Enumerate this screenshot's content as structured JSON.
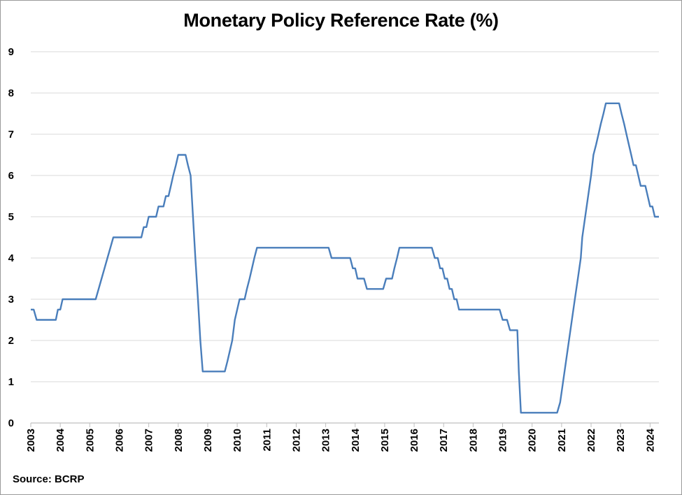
{
  "chart_data": {
    "type": "line",
    "title": "Monetary Policy Reference Rate (%)",
    "source": "Source: BCRP",
    "xlabel": "",
    "ylabel": "",
    "ylim": [
      0,
      9
    ],
    "y_ticks": [
      0,
      1,
      2,
      3,
      4,
      5,
      6,
      7,
      8,
      9
    ],
    "xlim": [
      2003,
      2024.3
    ],
    "x_ticks": [
      2003,
      2004,
      2005,
      2006,
      2007,
      2008,
      2009,
      2010,
      2011,
      2012,
      2013,
      2014,
      2015,
      2016,
      2017,
      2018,
      2019,
      2020,
      2021,
      2022,
      2023,
      2024
    ],
    "grid": "horizontal",
    "line_color": "#4a7ebb",
    "series": [
      {
        "points": [
          [
            2003.0,
            2.75
          ],
          [
            2003.1,
            2.75
          ],
          [
            2003.2,
            2.5
          ],
          [
            2003.85,
            2.5
          ],
          [
            2003.92,
            2.75
          ],
          [
            2004.0,
            2.75
          ],
          [
            2004.08,
            3.0
          ],
          [
            2005.2,
            3.0
          ],
          [
            2005.3,
            3.25
          ],
          [
            2005.4,
            3.5
          ],
          [
            2005.5,
            3.75
          ],
          [
            2005.6,
            4.0
          ],
          [
            2005.7,
            4.25
          ],
          [
            2005.8,
            4.5
          ],
          [
            2006.75,
            4.5
          ],
          [
            2006.83,
            4.75
          ],
          [
            2006.92,
            4.75
          ],
          [
            2007.0,
            5.0
          ],
          [
            2007.25,
            5.0
          ],
          [
            2007.33,
            5.25
          ],
          [
            2007.5,
            5.25
          ],
          [
            2007.58,
            5.5
          ],
          [
            2007.67,
            5.5
          ],
          [
            2007.75,
            5.75
          ],
          [
            2007.83,
            6.0
          ],
          [
            2007.92,
            6.25
          ],
          [
            2008.0,
            6.5
          ],
          [
            2008.25,
            6.5
          ],
          [
            2008.33,
            6.25
          ],
          [
            2008.42,
            6.0
          ],
          [
            2008.5,
            5.0
          ],
          [
            2008.58,
            4.0
          ],
          [
            2008.67,
            3.0
          ],
          [
            2008.75,
            2.0
          ],
          [
            2008.83,
            1.25
          ],
          [
            2009.58,
            1.25
          ],
          [
            2009.67,
            1.5
          ],
          [
            2009.75,
            1.75
          ],
          [
            2009.83,
            2.0
          ],
          [
            2009.92,
            2.5
          ],
          [
            2010.0,
            2.75
          ],
          [
            2010.08,
            3.0
          ],
          [
            2010.25,
            3.0
          ],
          [
            2010.33,
            3.25
          ],
          [
            2010.42,
            3.5
          ],
          [
            2010.5,
            3.75
          ],
          [
            2010.58,
            4.0
          ],
          [
            2010.67,
            4.25
          ],
          [
            2013.1,
            4.25
          ],
          [
            2013.2,
            4.0
          ],
          [
            2013.83,
            4.0
          ],
          [
            2013.92,
            3.75
          ],
          [
            2014.0,
            3.75
          ],
          [
            2014.08,
            3.5
          ],
          [
            2014.3,
            3.5
          ],
          [
            2014.4,
            3.25
          ],
          [
            2014.95,
            3.25
          ],
          [
            2015.05,
            3.5
          ],
          [
            2015.25,
            3.5
          ],
          [
            2015.33,
            3.75
          ],
          [
            2015.42,
            4.0
          ],
          [
            2015.5,
            4.25
          ],
          [
            2016.6,
            4.25
          ],
          [
            2016.7,
            4.0
          ],
          [
            2016.8,
            4.0
          ],
          [
            2016.88,
            3.75
          ],
          [
            2016.96,
            3.75
          ],
          [
            2017.04,
            3.5
          ],
          [
            2017.12,
            3.5
          ],
          [
            2017.2,
            3.25
          ],
          [
            2017.28,
            3.25
          ],
          [
            2017.36,
            3.0
          ],
          [
            2017.44,
            3.0
          ],
          [
            2017.52,
            2.75
          ],
          [
            2018.9,
            2.75
          ],
          [
            2019.0,
            2.5
          ],
          [
            2019.15,
            2.5
          ],
          [
            2019.25,
            2.25
          ],
          [
            2019.5,
            2.25
          ],
          [
            2019.55,
            1.25
          ],
          [
            2019.62,
            0.25
          ],
          [
            2020.85,
            0.25
          ],
          [
            2020.95,
            0.5
          ],
          [
            2021.05,
            1.0
          ],
          [
            2021.15,
            1.5
          ],
          [
            2021.25,
            2.0
          ],
          [
            2021.35,
            2.5
          ],
          [
            2021.45,
            3.0
          ],
          [
            2021.55,
            3.5
          ],
          [
            2021.65,
            4.0
          ],
          [
            2021.7,
            4.5
          ],
          [
            2021.8,
            5.0
          ],
          [
            2021.9,
            5.5
          ],
          [
            2022.0,
            6.0
          ],
          [
            2022.08,
            6.5
          ],
          [
            2022.17,
            6.75
          ],
          [
            2022.25,
            7.0
          ],
          [
            2022.33,
            7.25
          ],
          [
            2022.42,
            7.5
          ],
          [
            2022.5,
            7.75
          ],
          [
            2022.95,
            7.75
          ],
          [
            2023.03,
            7.5
          ],
          [
            2023.12,
            7.25
          ],
          [
            2023.2,
            7.0
          ],
          [
            2023.28,
            6.75
          ],
          [
            2023.36,
            6.5
          ],
          [
            2023.44,
            6.25
          ],
          [
            2023.52,
            6.25
          ],
          [
            2023.6,
            6.0
          ],
          [
            2023.68,
            5.75
          ],
          [
            2023.84,
            5.75
          ],
          [
            2023.92,
            5.5
          ],
          [
            2024.0,
            5.25
          ],
          [
            2024.08,
            5.25
          ],
          [
            2024.16,
            5.0
          ],
          [
            2024.3,
            5.0
          ]
        ]
      }
    ]
  }
}
